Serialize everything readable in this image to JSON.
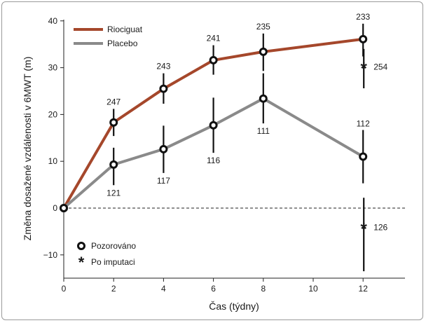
{
  "chart_data": {
    "type": "line",
    "xlabel": "Čas (týdny)",
    "ylabel": "Změna dosažené vzdálenosti v 6MWT (m)",
    "xlim": [
      0,
      14
    ],
    "ylim": [
      -15,
      40
    ],
    "x_ticks": [
      0,
      2,
      4,
      6,
      8,
      10,
      12
    ],
    "y_ticks": [
      -10,
      0,
      10,
      20,
      30,
      40
    ],
    "grid": false,
    "reference_line": {
      "y": 0,
      "style": "dashed"
    },
    "legend_position": "top-left",
    "series": [
      {
        "name": "Riociguat",
        "color": "#a5472b",
        "x": [
          0,
          2,
          4,
          6,
          8,
          12
        ],
        "y": [
          0,
          18.3,
          25.5,
          31.6,
          33.4,
          36.1
        ],
        "error_low": [
          null,
          15.4,
          22.3,
          28.5,
          29.3,
          32.4
        ],
        "error_high": [
          null,
          21.2,
          28.8,
          34.8,
          37.3,
          39.4
        ],
        "n_labels": [
          "",
          "247",
          "243",
          "241",
          "235",
          "233"
        ],
        "imputed": {
          "x": 12,
          "y": 30.2,
          "low": 25.6,
          "high": 34.0,
          "n_label": "254"
        }
      },
      {
        "name": "Placebo",
        "color": "#8a8a8a",
        "x": [
          0,
          2,
          4,
          6,
          8,
          12
        ],
        "y": [
          0,
          9.3,
          12.6,
          17.7,
          23.4,
          11.0
        ],
        "error_low": [
          null,
          4.9,
          7.5,
          11.8,
          18.1,
          5.3
        ],
        "error_high": [
          null,
          12.9,
          17.6,
          23.6,
          28.8,
          16.7
        ],
        "n_labels": [
          "",
          "121",
          "117",
          "116",
          "111",
          "112"
        ],
        "imputed": {
          "x": 12,
          "y": -4.1,
          "low": -13.5,
          "high": 2.2,
          "n_label": "126"
        }
      }
    ],
    "marker_legend": {
      "observed": "Pozorováno",
      "imputed": "Po imputaci"
    }
  }
}
